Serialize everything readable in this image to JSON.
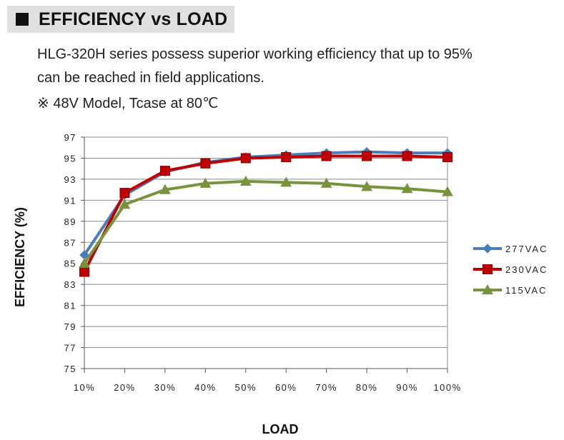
{
  "header": {
    "title": "EFFICIENCY vs LOAD"
  },
  "description": {
    "line1": "HLG-320H series possess superior working efficiency that up to 95%",
    "line2": "can be reached in field applications.",
    "line3": "※ 48V Model, Tcase at 80℃"
  },
  "chart_data": {
    "type": "line",
    "xlabel": "LOAD",
    "ylabel": "EFFICIENCY (%)",
    "categories": [
      "10%",
      "20%",
      "30%",
      "40%",
      "50%",
      "60%",
      "70%",
      "80%",
      "90%",
      "100%"
    ],
    "ylim": [
      75,
      97
    ],
    "yticks": [
      75,
      77,
      79,
      81,
      83,
      85,
      87,
      89,
      91,
      93,
      95,
      97
    ],
    "grid": "horizontal",
    "legend_position": "right",
    "series": [
      {
        "name": "277VAC",
        "color": "#4a7ebb",
        "marker": "diamond",
        "values": [
          85.8,
          91.5,
          93.7,
          94.6,
          95.1,
          95.3,
          95.5,
          95.6,
          95.5,
          95.5
        ]
      },
      {
        "name": "230VAC",
        "color": "#c00000",
        "marker": "square",
        "values": [
          84.2,
          91.7,
          93.8,
          94.5,
          95.0,
          95.1,
          95.2,
          95.2,
          95.2,
          95.1
        ]
      },
      {
        "name": "115VAC",
        "color": "#77933c",
        "marker": "triangle",
        "values": [
          85.0,
          90.6,
          92.0,
          92.6,
          92.8,
          92.7,
          92.6,
          92.3,
          92.1,
          91.8
        ]
      }
    ]
  }
}
